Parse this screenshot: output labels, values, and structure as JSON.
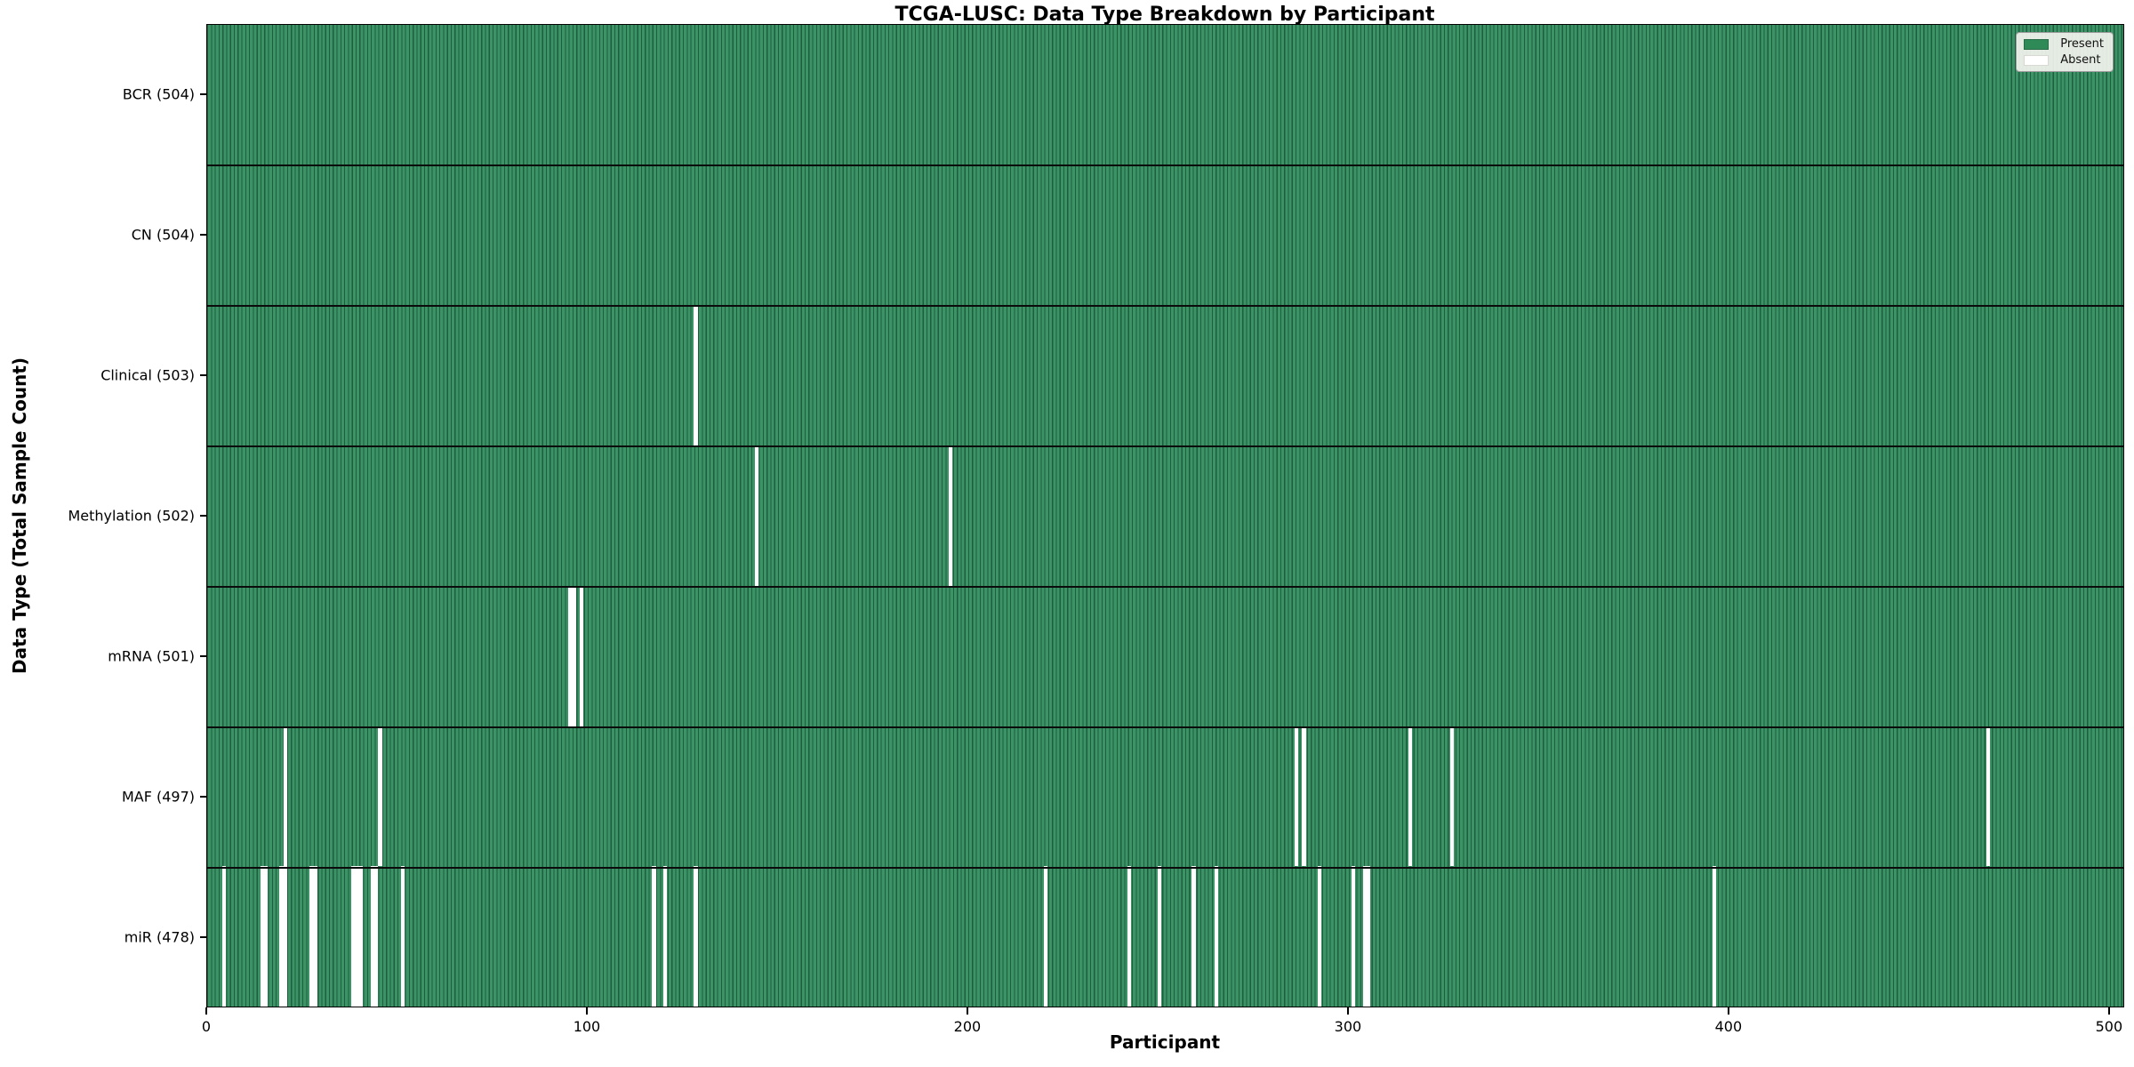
{
  "chart_data": {
    "type": "heatmap",
    "title": "TCGA-LUSC: Data Type Breakdown by Participant",
    "xlabel": "Participant",
    "ylabel": "Data Type (Total Sample Count)",
    "n_participants": 504,
    "x_range": [
      0,
      504
    ],
    "x_ticks": [
      0,
      100,
      200,
      300,
      400,
      500
    ],
    "grid": false,
    "legend_position": "upper right",
    "legend": [
      {
        "label": "Present",
        "color": "#2e8b57"
      },
      {
        "label": "Absent",
        "color": "#ffffff"
      }
    ],
    "colors": {
      "present": "#2e8b57",
      "present_fill": "#3b9366",
      "bar_edge": "#1e5d3d",
      "absent": "#ffffff"
    },
    "rows": [
      {
        "name": "BCR",
        "label": "BCR (504)",
        "present_count": 504,
        "absent_count": 0,
        "absent_participants": []
      },
      {
        "name": "CN",
        "label": "CN (504)",
        "present_count": 504,
        "absent_count": 0,
        "absent_participants": []
      },
      {
        "name": "Clinical",
        "label": "Clinical (503)",
        "present_count": 503,
        "absent_count": 1,
        "absent_participants": [
          128
        ]
      },
      {
        "name": "Methylation",
        "label": "Methylation (502)",
        "present_count": 502,
        "absent_count": 2,
        "absent_participants": [
          144,
          195
        ]
      },
      {
        "name": "mRNA",
        "label": "mRNA (501)",
        "present_count": 501,
        "absent_count": 3,
        "absent_participants": [
          95,
          96,
          98
        ]
      },
      {
        "name": "MAF",
        "label": "MAF (497)",
        "present_count": 497,
        "absent_count": 7,
        "absent_participants": [
          20,
          45,
          286,
          288,
          316,
          327,
          468
        ]
      },
      {
        "name": "miR",
        "label": "miR (478)",
        "present_count": 478,
        "absent_count": 26,
        "absent_participants": [
          4,
          14,
          15,
          19,
          20,
          27,
          28,
          38,
          39,
          40,
          43,
          44,
          51,
          117,
          120,
          128,
          220,
          242,
          250,
          259,
          265,
          292,
          301,
          304,
          305,
          396
        ]
      }
    ]
  }
}
